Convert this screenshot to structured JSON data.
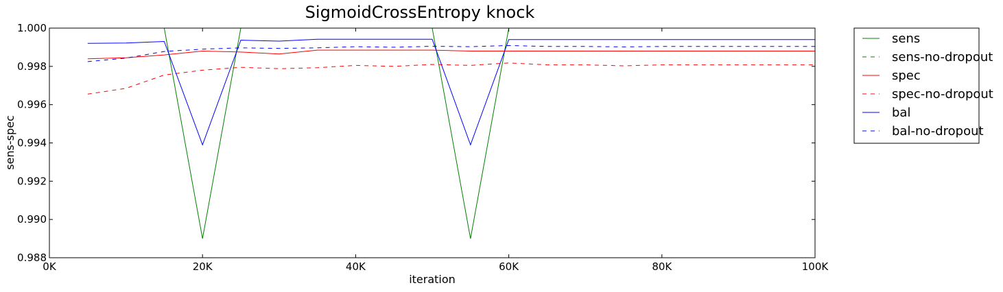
{
  "chart_data": {
    "type": "line",
    "title": "SigmoidCrossEntropy knock",
    "xlabel": "iteration",
    "ylabel": "sens-spec",
    "xlim": [
      0,
      100000
    ],
    "ylim": [
      0.988,
      1.0
    ],
    "xticks": [
      0,
      20000,
      40000,
      60000,
      80000,
      100000
    ],
    "xtick_labels": [
      "0K",
      "20K",
      "40K",
      "60K",
      "80K",
      "100K"
    ],
    "yticks": [
      0.988,
      0.99,
      0.992,
      0.994,
      0.996,
      0.998,
      1.0
    ],
    "ytick_labels": [
      "0.988",
      "0.990",
      "0.992",
      "0.994",
      "0.996",
      "0.998",
      "1.000"
    ],
    "grid": false,
    "legend_position": "outside-right",
    "series": [
      {
        "name": "sens",
        "color": "#008000",
        "dash": "solid",
        "x": [
          5000,
          10000,
          15000,
          20000,
          25000,
          30000,
          35000,
          40000,
          45000,
          50000,
          55000,
          60000,
          65000,
          70000,
          75000,
          80000,
          85000,
          90000,
          95000,
          100000
        ],
        "y": [
          1.0,
          1.0,
          1.0,
          0.989,
          1.0,
          1.0,
          1.0,
          1.0,
          1.0,
          1.0,
          0.989,
          1.0,
          1.0,
          1.0,
          1.0,
          1.0,
          1.0,
          1.0,
          1.0,
          1.0
        ]
      },
      {
        "name": "sens-no-dropout",
        "color": "#008000",
        "dash": "dashed",
        "x": [
          5000,
          10000,
          15000,
          20000,
          25000,
          30000,
          35000,
          40000,
          45000,
          50000,
          55000,
          60000,
          65000,
          70000,
          75000,
          80000,
          85000,
          90000,
          95000,
          100000
        ],
        "y": [
          1.0,
          1.0,
          1.0,
          1.0,
          1.0,
          1.0,
          1.0,
          1.0,
          1.0,
          1.0,
          1.0,
          1.0,
          1.0,
          1.0,
          1.0,
          1.0,
          1.0,
          1.0,
          1.0,
          1.0
        ]
      },
      {
        "name": "spec",
        "color": "#ff0000",
        "dash": "solid",
        "x": [
          5000,
          10000,
          15000,
          20000,
          25000,
          30000,
          35000,
          40000,
          45000,
          50000,
          55000,
          60000,
          65000,
          70000,
          75000,
          80000,
          85000,
          90000,
          95000,
          100000
        ],
        "y": [
          0.9984,
          0.99845,
          0.9986,
          0.9988,
          0.99875,
          0.99865,
          0.99885,
          0.99885,
          0.99885,
          0.99885,
          0.9988,
          0.9988,
          0.9988,
          0.9988,
          0.9988,
          0.9988,
          0.9988,
          0.9988,
          0.9988,
          0.9988
        ]
      },
      {
        "name": "spec-no-dropout",
        "color": "#ff0000",
        "dash": "dashed",
        "x": [
          5000,
          10000,
          15000,
          20000,
          25000,
          30000,
          35000,
          40000,
          45000,
          50000,
          55000,
          60000,
          65000,
          70000,
          75000,
          80000,
          85000,
          90000,
          95000,
          100000
        ],
        "y": [
          0.99655,
          0.99685,
          0.99755,
          0.9978,
          0.99795,
          0.99788,
          0.99793,
          0.99805,
          0.998,
          0.9981,
          0.99805,
          0.99818,
          0.99808,
          0.99808,
          0.99803,
          0.99808,
          0.99808,
          0.99808,
          0.99808,
          0.99808
        ]
      },
      {
        "name": "bal",
        "color": "#0000ff",
        "dash": "solid",
        "x": [
          5000,
          10000,
          15000,
          20000,
          25000,
          30000,
          35000,
          40000,
          45000,
          50000,
          55000,
          60000,
          65000,
          70000,
          75000,
          80000,
          85000,
          90000,
          95000,
          100000
        ],
        "y": [
          0.9992,
          0.99922,
          0.9993,
          0.9939,
          0.99937,
          0.99932,
          0.99942,
          0.99942,
          0.99942,
          0.99942,
          0.9939,
          0.9994,
          0.9994,
          0.9994,
          0.9994,
          0.9994,
          0.9994,
          0.9994,
          0.9994,
          0.9994
        ]
      },
      {
        "name": "bal-no-dropout",
        "color": "#0000ff",
        "dash": "dashed",
        "x": [
          5000,
          10000,
          15000,
          20000,
          25000,
          30000,
          35000,
          40000,
          45000,
          50000,
          55000,
          60000,
          65000,
          70000,
          75000,
          80000,
          85000,
          90000,
          95000,
          100000
        ],
        "y": [
          0.99825,
          0.99843,
          0.99878,
          0.9989,
          0.99897,
          0.99894,
          0.99897,
          0.99903,
          0.999,
          0.99905,
          0.99903,
          0.99909,
          0.99904,
          0.99904,
          0.99902,
          0.99904,
          0.99904,
          0.99904,
          0.99904,
          0.99904
        ]
      }
    ]
  }
}
